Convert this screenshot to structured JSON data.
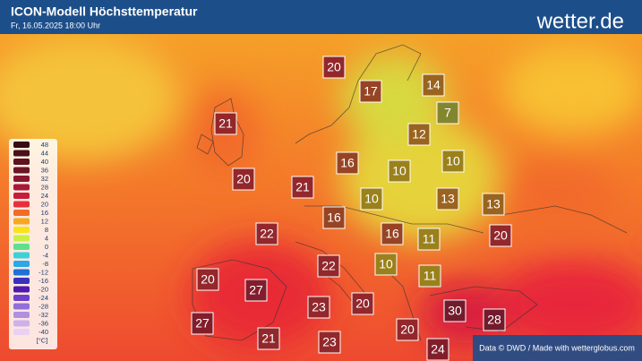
{
  "header": {
    "title": "ICON-Modell Höchsttemperatur",
    "subtitle": "Fr, 16.05.2025 18:00 Uhr",
    "brand": "wetter.de"
  },
  "legend": {
    "steps": [
      {
        "value": 48,
        "color": "#3a0b12"
      },
      {
        "value": 44,
        "color": "#4a0f18"
      },
      {
        "value": 40,
        "color": "#5c1220"
      },
      {
        "value": 36,
        "color": "#6e1428"
      },
      {
        "value": 32,
        "color": "#8a1530"
      },
      {
        "value": 28,
        "color": "#a8183a"
      },
      {
        "value": 24,
        "color": "#c81d3a"
      },
      {
        "value": 20,
        "color": "#e8303a"
      },
      {
        "value": 16,
        "color": "#f26a2a"
      },
      {
        "value": 12,
        "color": "#f7a81f"
      },
      {
        "value": 8,
        "color": "#f8e31a"
      },
      {
        "value": 4,
        "color": "#c8f040"
      },
      {
        "value": 0,
        "color": "#5ee08a"
      },
      {
        "value": -4,
        "color": "#3ed0d8"
      },
      {
        "value": -8,
        "color": "#2aa8e8"
      },
      {
        "value": -12,
        "color": "#2070d8"
      },
      {
        "value": -16,
        "color": "#3a30c0"
      },
      {
        "value": -20,
        "color": "#5018b0"
      },
      {
        "value": -24,
        "color": "#7040c8"
      },
      {
        "value": -28,
        "color": "#9070d8"
      },
      {
        "value": -32,
        "color": "#b090e0"
      },
      {
        "value": -36,
        "color": "#d0b0ea"
      },
      {
        "value": -40,
        "color": "#ecd0f2"
      }
    ],
    "unit": "[°C]"
  },
  "temperatures": [
    20,
    17,
    14,
    7,
    21,
    12,
    16,
    10,
    10,
    20,
    21,
    10,
    13,
    13,
    16,
    22,
    16,
    11,
    20,
    22,
    10,
    11,
    20,
    27,
    23,
    20,
    30,
    28,
    27,
    21,
    23,
    20,
    24
  ],
  "footer": "Data © DWD / Made with wetterglobus.com"
}
